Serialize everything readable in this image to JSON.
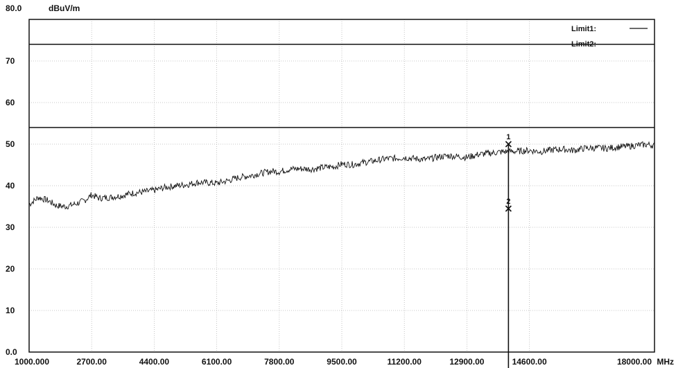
{
  "chart_data": {
    "type": "line",
    "top_value_label": "80.0",
    "y_unit": "dBuV/m",
    "x_unit": "MHz",
    "xlim": [
      1000,
      18000
    ],
    "ylim": [
      0,
      80
    ],
    "grid": true,
    "legend_position": "top-right",
    "x_ticks": [
      {
        "value": 1000,
        "label": "1000.000"
      },
      {
        "value": 2700,
        "label": "2700.00"
      },
      {
        "value": 4400,
        "label": "4400.00"
      },
      {
        "value": 6100,
        "label": "6100.00"
      },
      {
        "value": 7800,
        "label": "7800.00"
      },
      {
        "value": 9500,
        "label": "9500.00"
      },
      {
        "value": 11200,
        "label": "11200.00"
      },
      {
        "value": 12900,
        "label": "12900.00"
      },
      {
        "value": 14600,
        "label": "14600.00"
      },
      {
        "value": 18000,
        "label": "18000.00"
      }
    ],
    "y_ticks": [
      {
        "value": 70,
        "label": "70"
      },
      {
        "value": 60,
        "label": "60"
      },
      {
        "value": 50,
        "label": "50"
      },
      {
        "value": 40,
        "label": "40"
      },
      {
        "value": 30,
        "label": "30"
      },
      {
        "value": 20,
        "label": "20"
      },
      {
        "value": 10,
        "label": "10"
      },
      {
        "value": 0,
        "label": "0.0"
      }
    ],
    "limits": [
      {
        "name": "Limit1:",
        "value": 74
      },
      {
        "name": "Limit2:",
        "value": 54
      }
    ],
    "series": [
      {
        "x": [
          1000,
          1250,
          1500,
          1750,
          2000,
          2250,
          2500,
          2700,
          2900,
          3200,
          3500,
          3800,
          4100,
          4400,
          4700,
          5000,
          5300,
          5600,
          5900,
          6100,
          6400,
          6700,
          7000,
          7300,
          7600,
          7800,
          8100,
          8400,
          8700,
          9000,
          9300,
          9500,
          9800,
          10100,
          10400,
          10700,
          11000,
          11200,
          11500,
          11800,
          12100,
          12400,
          12700,
          12900,
          13200,
          13500,
          13800,
          14000,
          14300,
          14600,
          14900,
          15200,
          15500,
          15800,
          16100,
          16400,
          16700,
          17000,
          17300,
          17600,
          17800,
          18000
        ],
        "values": [
          35.5,
          37.2,
          36.5,
          35.2,
          35.0,
          35.6,
          36.4,
          37.8,
          37.0,
          37.2,
          37.6,
          38.2,
          38.5,
          38.9,
          39.6,
          40.0,
          40.3,
          40.8,
          40.7,
          40.6,
          41.2,
          42.0,
          42.4,
          43.0,
          43.5,
          43.4,
          44.0,
          44.1,
          44.0,
          44.4,
          44.6,
          45.2,
          45.1,
          45.6,
          46.0,
          46.5,
          46.6,
          46.8,
          46.5,
          46.3,
          46.9,
          47.2,
          47.0,
          46.8,
          47.5,
          47.8,
          48.1,
          48.2,
          48.3,
          48.5,
          48.2,
          48.6,
          48.8,
          48.5,
          49.0,
          49.1,
          49.0,
          49.3,
          49.5,
          49.8,
          49.9,
          49.7
        ]
      }
    ],
    "markers": [
      {
        "label": "1",
        "x": 14030,
        "y": 50.0
      },
      {
        "label": "2",
        "x": 14030,
        "y": 34.5
      }
    ]
  }
}
